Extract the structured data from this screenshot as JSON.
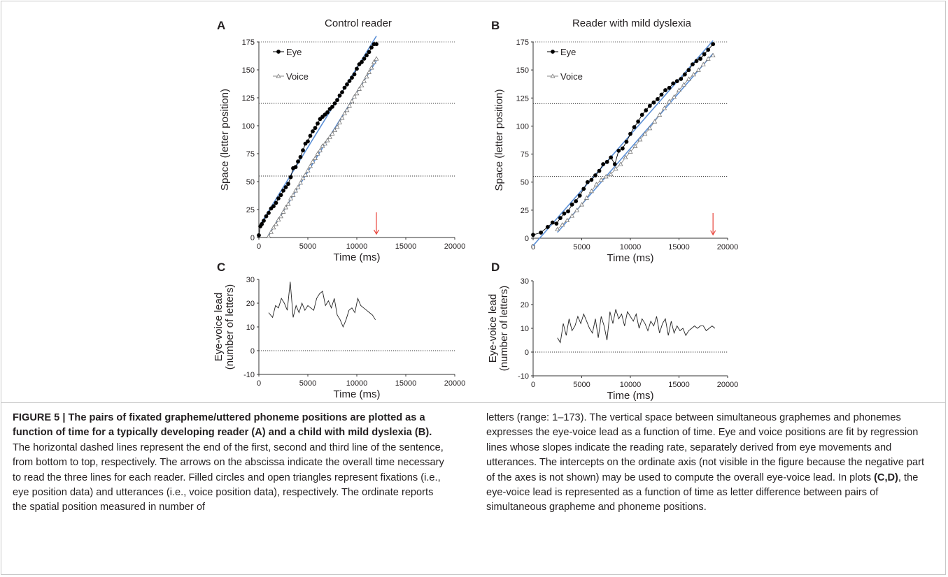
{
  "panels": {
    "A": {
      "letter": "A",
      "title": "Control reader"
    },
    "B": {
      "letter": "B",
      "title": "Reader with mild dyslexia"
    },
    "C": {
      "letter": "C"
    },
    "D": {
      "letter": "D"
    }
  },
  "chart_data": [
    {
      "id": "A",
      "type": "scatter",
      "title": "Control reader",
      "xlabel": "Time (ms)",
      "ylabel": "Space (letter position)",
      "xlim": [
        0,
        20000
      ],
      "ylim": [
        0,
        175
      ],
      "xticks": [
        0,
        5000,
        10000,
        15000,
        20000
      ],
      "yticks": [
        0,
        25,
        50,
        75,
        100,
        125,
        150,
        175
      ],
      "legend_position": "top-left",
      "hlines": [
        55,
        120
      ],
      "arrow_x": 12000,
      "series": [
        {
          "name": "Eye",
          "marker": "filled-circle",
          "color": "#000000",
          "x": [
            0,
            150,
            300,
            500,
            750,
            1000,
            1250,
            1500,
            1750,
            2000,
            2250,
            2500,
            2750,
            3000,
            3250,
            3500,
            3750,
            4000,
            4250,
            4500,
            4750,
            5000,
            5250,
            5500,
            5750,
            6000,
            6250,
            6500,
            6750,
            7000,
            7250,
            7500,
            7750,
            8000,
            8250,
            8500,
            8750,
            9000,
            9250,
            9500,
            9750,
            10000,
            10250,
            10500,
            10750,
            11000,
            11250,
            11500,
            11750,
            12000
          ],
          "y": [
            2,
            10,
            12,
            15,
            19,
            22,
            26,
            28,
            31,
            35,
            38,
            42,
            45,
            48,
            54,
            62,
            63,
            68,
            72,
            78,
            84,
            86,
            91,
            95,
            98,
            102,
            106,
            108,
            110,
            112,
            115,
            117,
            120,
            123,
            127,
            130,
            134,
            137,
            140,
            143,
            146,
            151,
            155,
            157,
            160,
            163,
            166,
            170,
            173,
            173
          ]
        },
        {
          "name": "Voice",
          "marker": "open-triangle",
          "color": "#808080",
          "x": [
            1000,
            1250,
            1500,
            1750,
            2000,
            2250,
            2500,
            2750,
            3000,
            3250,
            3500,
            3750,
            4000,
            4250,
            4500,
            4750,
            5000,
            5250,
            5500,
            5750,
            6000,
            6250,
            6500,
            6750,
            7000,
            7250,
            7500,
            7750,
            8000,
            8250,
            8500,
            8750,
            9000,
            9250,
            9500,
            9750,
            10000,
            10250,
            10500,
            10750,
            11000,
            11250,
            11500,
            11750,
            12000
          ],
          "y": [
            1,
            5,
            9,
            12,
            16,
            19,
            23,
            27,
            30,
            35,
            38,
            42,
            45,
            49,
            53,
            56,
            60,
            64,
            68,
            71,
            75,
            78,
            82,
            84,
            87,
            90,
            93,
            96,
            99,
            103,
            107,
            111,
            114,
            118,
            122,
            126,
            129,
            133,
            136,
            140,
            144,
            148,
            152,
            157,
            160
          ]
        }
      ]
    },
    {
      "id": "B",
      "type": "scatter",
      "title": "Reader with mild dyslexia",
      "xlabel": "Time (ms)",
      "ylabel": "Space (letter position)",
      "xlim": [
        0,
        20000
      ],
      "ylim": [
        0,
        175
      ],
      "xticks": [
        0,
        5000,
        10000,
        15000,
        20000
      ],
      "yticks": [
        0,
        25,
        50,
        75,
        100,
        125,
        150,
        175
      ],
      "legend_position": "top-left",
      "hlines": [
        55,
        120
      ],
      "arrow_x": 18500,
      "series": [
        {
          "name": "Eye",
          "marker": "filled-circle",
          "color": "#000000",
          "x": [
            0,
            800,
            1500,
            2000,
            2400,
            2800,
            3200,
            3600,
            4000,
            4400,
            4800,
            5200,
            5600,
            6000,
            6400,
            6800,
            7200,
            7600,
            8000,
            8400,
            8800,
            9200,
            9600,
            10000,
            10400,
            10800,
            11200,
            11600,
            12000,
            12400,
            12800,
            13200,
            13600,
            14000,
            14400,
            14800,
            15200,
            15600,
            16000,
            16400,
            16800,
            17200,
            17600,
            18000,
            18500
          ],
          "y": [
            3,
            5,
            10,
            14,
            13,
            18,
            22,
            24,
            30,
            33,
            38,
            44,
            50,
            52,
            56,
            60,
            66,
            68,
            72,
            66,
            78,
            80,
            86,
            93,
            99,
            104,
            110,
            114,
            118,
            121,
            124,
            128,
            132,
            134,
            138,
            140,
            142,
            146,
            150,
            155,
            158,
            160,
            164,
            168,
            173
          ]
        },
        {
          "name": "Voice",
          "marker": "open-triangle",
          "color": "#808080",
          "x": [
            2500,
            3000,
            3500,
            4000,
            4500,
            5000,
            5500,
            6000,
            6500,
            7000,
            7500,
            8000,
            8500,
            9000,
            9500,
            10000,
            10500,
            11000,
            11500,
            12000,
            12500,
            13000,
            13500,
            14000,
            14500,
            15000,
            15500,
            16000,
            16500,
            17000,
            17500,
            18000,
            18500
          ],
          "y": [
            8,
            12,
            16,
            20,
            25,
            30,
            36,
            42,
            48,
            52,
            55,
            57,
            62,
            66,
            72,
            77,
            82,
            88,
            93,
            98,
            104,
            110,
            116,
            122,
            126,
            132,
            137,
            142,
            146,
            150,
            155,
            160,
            163
          ]
        }
      ]
    },
    {
      "id": "C",
      "type": "line",
      "xlabel": "Time (ms)",
      "ylabel": "Eye-voice lead (number of letters)",
      "ylabel_lines": [
        "Eye-voice lead",
        "(number of letters)"
      ],
      "xlim": [
        0,
        20000
      ],
      "ylim": [
        -10,
        30
      ],
      "xticks": [
        0,
        5000,
        10000,
        15000,
        20000
      ],
      "yticks": [
        -10,
        0,
        10,
        20,
        30
      ],
      "hlines": [
        0
      ],
      "series": [
        {
          "name": "",
          "color": "#000000",
          "x": [
            1000,
            1400,
            1700,
            2000,
            2300,
            2600,
            2900,
            3200,
            3500,
            3800,
            4100,
            4400,
            4700,
            5000,
            5300,
            5600,
            5900,
            6200,
            6500,
            6800,
            7100,
            7400,
            7700,
            8000,
            8300,
            8600,
            8900,
            9200,
            9500,
            9800,
            10100,
            10400,
            10700,
            11000,
            11300,
            11600,
            11900
          ],
          "y": [
            16,
            14,
            19,
            18,
            22,
            20,
            17,
            29,
            14,
            19,
            16,
            20,
            17,
            19,
            18,
            17,
            22,
            24,
            25,
            19,
            21,
            18,
            22,
            15,
            13,
            10,
            13,
            17,
            18,
            16,
            22,
            19,
            18,
            17,
            16,
            15,
            13
          ]
        }
      ]
    },
    {
      "id": "D",
      "type": "line",
      "xlabel": "Time (ms)",
      "ylabel": "Eye-voice lead (number of letters)",
      "ylabel_lines": [
        "Eye-voice lead",
        "(number of letters)"
      ],
      "xlim": [
        0,
        20000
      ],
      "ylim": [
        -10,
        30
      ],
      "xticks": [
        0,
        5000,
        10000,
        15000,
        20000
      ],
      "yticks": [
        -10,
        0,
        10,
        20,
        30
      ],
      "hlines": [
        0
      ],
      "series": [
        {
          "name": "",
          "color": "#000000",
          "x": [
            2500,
            2800,
            3100,
            3400,
            3700,
            4000,
            4300,
            4600,
            4900,
            5200,
            5500,
            5800,
            6100,
            6400,
            6700,
            7000,
            7300,
            7600,
            7900,
            8200,
            8500,
            8800,
            9100,
            9400,
            9700,
            10000,
            10300,
            10600,
            10900,
            11200,
            11500,
            11800,
            12100,
            12400,
            12700,
            13000,
            13300,
            13600,
            13900,
            14200,
            14500,
            14800,
            15100,
            15400,
            15700,
            16000,
            16300,
            16600,
            16900,
            17200,
            17500,
            17800,
            18100,
            18400,
            18700
          ],
          "y": [
            6,
            4,
            12,
            7,
            14,
            9,
            11,
            15,
            12,
            16,
            13,
            10,
            8,
            14,
            6,
            15,
            11,
            5,
            17,
            12,
            18,
            14,
            16,
            11,
            17,
            15,
            13,
            16,
            10,
            14,
            12,
            9,
            13,
            11,
            15,
            8,
            12,
            14,
            7,
            13,
            8,
            11,
            9,
            10,
            7,
            9,
            10,
            11,
            10,
            11,
            11,
            9,
            10,
            11,
            10
          ]
        }
      ]
    }
  ],
  "caption": {
    "left_bold": "FIGURE 5 | The pairs of fixated grapheme/uttered phoneme positions are plotted as a function of time for a typically developing reader (A) and a child with mild dyslexia (B).",
    "left_rest": " The horizontal dashed lines represent the end of the first, second and third line of the sentence, from bottom to top, respectively. The arrows on the abscissa indicate the overall time necessary to read the three lines for each reader. Filled circles and open triangles represent fixations (i.e., eye position data) and utterances (i.e., voice position data), respectively. The ordinate reports the spatial position measured in number of",
    "right_1": "letters (range: 1–173). The vertical space between simultaneous graphemes and phonemes expresses the eye-voice lead as a function of time. Eye and voice positions are fit by regression lines whose slopes indicate the reading rate, separately derived from eye movements and utterances. The intercepts on the ordinate axis (not visible in the figure because the negative part of the axes is not shown) may be used to compute the overall eye-voice lead. In plots ",
    "right_bold": "(C,D)",
    "right_2": ", the eye-voice lead is represented as a function of time as letter difference between pairs of simultaneous grapheme and phoneme positions."
  }
}
